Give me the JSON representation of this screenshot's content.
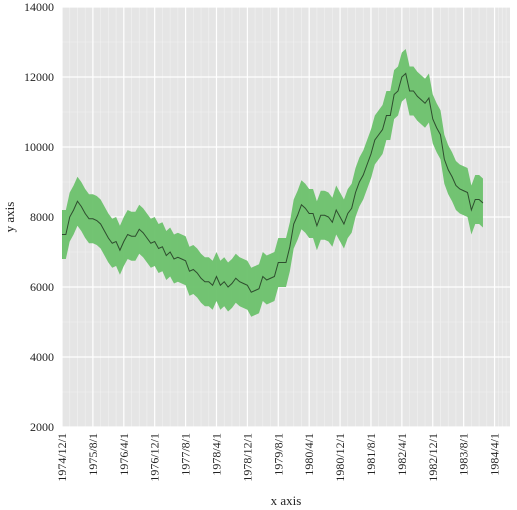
{
  "chart_data": {
    "type": "area",
    "xlabel": "x axis",
    "ylabel": "y axis",
    "ylim": [
      2000,
      14000
    ],
    "yticks": [
      2000,
      4000,
      6000,
      8000,
      10000,
      12000,
      14000
    ],
    "xticks": [
      "1974/12/1",
      "1975/8/1",
      "1976/4/1",
      "1976/12/1",
      "1977/8/1",
      "1978/4/1",
      "1978/12/1",
      "1979/8/1",
      "1980/4/1",
      "1980/12/1",
      "1981/8/1",
      "1982/4/1",
      "1982/12/1",
      "1983/8/1",
      "1984/4/1"
    ],
    "x_start": "1974/12/1",
    "x_end": "1984/8/1",
    "grid": true,
    "background": "#e5e5e5",
    "band_color": "#6cc16c",
    "line_color": "#2e4d2e",
    "series": [
      {
        "values": [
          7500,
          7500,
          8000,
          8200,
          8450,
          8300,
          8100,
          7950,
          7950,
          7900,
          7800,
          7600,
          7400,
          7250,
          7300,
          7050,
          7300,
          7500,
          7450,
          7450,
          7650,
          7550,
          7400,
          7250,
          7300,
          7100,
          7150,
          6900,
          7000,
          6800,
          6850,
          6800,
          6750,
          6450,
          6500,
          6400,
          6250,
          6150,
          6150,
          6050,
          6300,
          6050,
          6150,
          6000,
          6100,
          6250,
          6150,
          6100,
          6050,
          5850,
          5900,
          5950,
          6300,
          6200,
          6250,
          6300,
          6700,
          6700,
          6700,
          7150,
          7800,
          8050,
          8350,
          8250,
          8100,
          8100,
          7750,
          8050,
          8050,
          8000,
          7850,
          8200,
          8000,
          7800,
          8100,
          8250,
          8700,
          9000,
          9200,
          9500,
          9800,
          10200,
          10350,
          10500,
          10900,
          10900,
          11500,
          11600,
          12000,
          12100,
          11600,
          11600,
          11450,
          11350,
          11250,
          11400,
          10800,
          10550,
          10350,
          9650,
          9350,
          9150,
          8900,
          8800,
          8750,
          8700,
          8200,
          8500,
          8500,
          8400
        ]
      }
    ],
    "band_halfwidth": 700
  }
}
